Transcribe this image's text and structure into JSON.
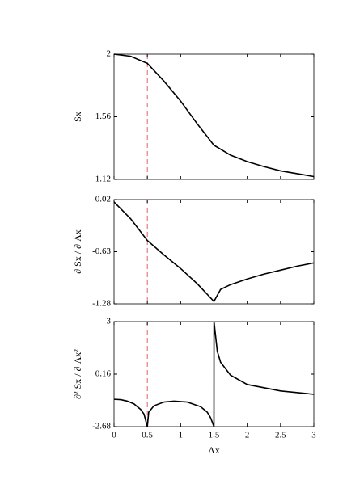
{
  "chart_data": [
    {
      "type": "line",
      "ylabel": "Sx",
      "x": [
        0,
        0.25,
        0.5,
        0.75,
        1,
        1.25,
        1.5,
        1.75,
        2,
        2.25,
        2.5,
        2.75,
        3
      ],
      "series": [
        {
          "color": "#000000",
          "values": [
            2,
            1.985,
            1.935,
            1.81,
            1.67,
            1.51,
            1.36,
            1.29,
            1.245,
            1.21,
            1.18,
            1.16,
            1.14
          ]
        }
      ],
      "xlim": [
        0,
        3
      ],
      "xticks": [
        0,
        0.5,
        1,
        1.5,
        2,
        2.5,
        3
      ],
      "ylim": [
        1.12,
        2
      ],
      "yticks": [
        2,
        1.56,
        1.12
      ],
      "vlines": [
        0.5,
        1.5
      ],
      "vline_color": "#e05050"
    },
    {
      "type": "line",
      "ylabel": "∂ Sx / ∂ Λx",
      "x": [
        0,
        0.25,
        0.5,
        0.75,
        1,
        1.25,
        1.5,
        1.6,
        1.75,
        2,
        2.25,
        2.5,
        2.75,
        3
      ],
      "series": [
        {
          "color": "#000000",
          "values": [
            -0.01,
            -0.22,
            -0.49,
            -0.67,
            -0.84,
            -1.03,
            -1.25,
            -1.1,
            -1.04,
            -0.97,
            -0.91,
            -0.86,
            -0.81,
            -0.77
          ]
        }
      ],
      "xlim": [
        0,
        3
      ],
      "xticks": [
        0,
        0.5,
        1,
        1.5,
        2,
        2.5,
        3
      ],
      "ylim": [
        -1.28,
        0.02
      ],
      "yticks": [
        0.02,
        -0.63,
        -1.28
      ],
      "vlines": [
        0.5,
        1.5
      ],
      "vline_color": "#e05050"
    },
    {
      "type": "line",
      "ylabel": "∂² Sx / ∂ Λx²",
      "xlabel": "Λx",
      "x": [
        0,
        0.1,
        0.2,
        0.3,
        0.4,
        0.45,
        0.5,
        0.52,
        0.6,
        0.75,
        0.9,
        1.1,
        1.3,
        1.4,
        1.45,
        1.5,
        1.501,
        1.55,
        1.6,
        1.75,
        2,
        2.5,
        3
      ],
      "series": [
        {
          "color": "#000000",
          "values": [
            -1.2,
            -1.22,
            -1.3,
            -1.45,
            -1.75,
            -2.0,
            -2.68,
            -1.9,
            -1.55,
            -1.35,
            -1.3,
            -1.35,
            -1.6,
            -1.9,
            -2.2,
            -2.68,
            3,
            1.4,
            0.8,
            0.1,
            -0.4,
            -0.75,
            -0.93
          ]
        }
      ],
      "xlim": [
        0,
        3
      ],
      "xticks": [
        0,
        0.5,
        1,
        1.5,
        2,
        2.5,
        3
      ],
      "ylim": [
        -2.68,
        3
      ],
      "yticks": [
        3,
        0.16,
        -2.68
      ],
      "vlines": [
        0.5,
        1.5
      ],
      "vline_color": "#e05050"
    }
  ]
}
